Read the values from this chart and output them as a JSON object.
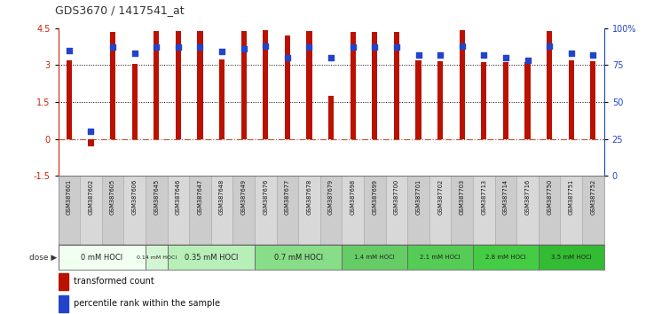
{
  "title": "GDS3670 / 1417541_at",
  "samples": [
    "GSM387601",
    "GSM387602",
    "GSM387605",
    "GSM387606",
    "GSM387645",
    "GSM387646",
    "GSM387647",
    "GSM387648",
    "GSM387649",
    "GSM387676",
    "GSM387677",
    "GSM387678",
    "GSM387679",
    "GSM387698",
    "GSM387699",
    "GSM387700",
    "GSM387701",
    "GSM387702",
    "GSM387703",
    "GSM387713",
    "GSM387714",
    "GSM387716",
    "GSM387750",
    "GSM387751",
    "GSM387752"
  ],
  "transformed_count": [
    3.2,
    -0.3,
    4.35,
    3.05,
    4.38,
    4.38,
    4.38,
    3.22,
    4.38,
    4.42,
    4.2,
    4.38,
    1.75,
    4.35,
    4.35,
    4.35,
    3.2,
    3.15,
    4.42,
    3.12,
    3.12,
    3.12,
    4.38,
    3.2,
    3.15
  ],
  "percentile_rank": [
    85,
    30,
    87,
    83,
    87,
    87,
    87,
    84,
    86,
    88,
    80,
    87,
    80,
    87,
    87,
    87,
    82,
    82,
    88,
    82,
    80,
    78,
    88,
    83,
    82
  ],
  "dose_groups": [
    {
      "label": "0 mM HOCl",
      "start": 0,
      "end": 4,
      "color": "#f0fff0"
    },
    {
      "label": "0.14 mM HOCl",
      "start": 4,
      "end": 5,
      "color": "#d4f5d4"
    },
    {
      "label": "0.35 mM HOCl",
      "start": 5,
      "end": 9,
      "color": "#b8eeb8"
    },
    {
      "label": "0.7 mM HOCl",
      "start": 9,
      "end": 13,
      "color": "#88dd88"
    },
    {
      "label": "1.4 mM HOCl",
      "start": 13,
      "end": 16,
      "color": "#66cc66"
    },
    {
      "label": "2.1 mM HOCl",
      "start": 16,
      "end": 19,
      "color": "#55cc55"
    },
    {
      "label": "2.8 mM HOCl",
      "start": 19,
      "end": 22,
      "color": "#44cc44"
    },
    {
      "label": "3.5 mM HOCl",
      "start": 22,
      "end": 25,
      "color": "#33bb33"
    }
  ],
  "ylim_left": [
    -1.5,
    4.5
  ],
  "ylim_right": [
    0,
    100
  ],
  "yticks_left": [
    -1.5,
    0,
    1.5,
    3.0,
    4.5
  ],
  "yticks_right": [
    0,
    25,
    50,
    75,
    100
  ],
  "bar_color": "#bb1100",
  "dot_color": "#2244cc",
  "background_color": "#ffffff",
  "hline_zero_color": "#bb5533",
  "grid_color": "#000000",
  "dot_size": 18,
  "bar_width": 0.25
}
